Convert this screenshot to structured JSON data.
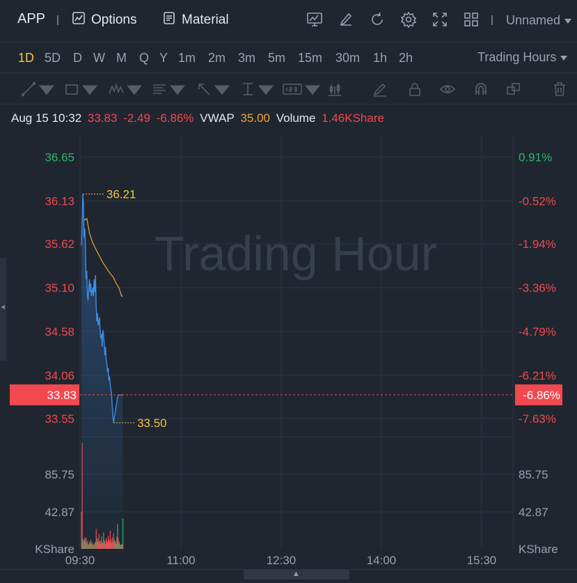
{
  "header": {
    "ticker": "APP",
    "separator": "|",
    "options_label": "Options",
    "material_label": "Material",
    "layout_name": "Unnamed",
    "icons": [
      "chart-compare-icon",
      "edit-icon",
      "refresh-icon",
      "gear-icon",
      "fullscreen-icon",
      "grid-layout-icon"
    ]
  },
  "intervals": {
    "items": [
      "1D",
      "5D",
      "D",
      "W",
      "M",
      "Q",
      "Y",
      "1m",
      "2m",
      "3m",
      "5m",
      "15m",
      "30m",
      "1h",
      "2h"
    ],
    "active": "1D",
    "session_label": "Trading Hours"
  },
  "drawing_tools": [
    "trendline-icon",
    "rectangle-icon",
    "pattern-icon",
    "fib-icon",
    "arrow-icon",
    "measure-icon",
    "text-note-icon",
    "candle-icon",
    "pencil-icon",
    "lock-icon",
    "eye-icon",
    "magnet-icon",
    "layers-icon",
    "trash-icon"
  ],
  "quote": {
    "datetime": "Aug 15 10:32",
    "price": "33.83",
    "change": "-2.49",
    "change_pct": "-6.86%",
    "vwap_label": "VWAP",
    "vwap_value": "35.00",
    "volume_label": "Volume",
    "volume_value": "1.46KShare"
  },
  "chart": {
    "watermark": "Trading Hour",
    "price_ticks": [
      "36.65",
      "36.13",
      "35.62",
      "35.10",
      "34.58",
      "34.06",
      "33.55"
    ],
    "pct_ticks": [
      "0.91%",
      "-0.52%",
      "-1.94%",
      "-3.36%",
      "-4.79%",
      "-6.21%",
      "-7.63%"
    ],
    "last_price_label": "33.83",
    "last_pct_label": "-6.86%",
    "high_label": "36.21",
    "low_label": "33.50",
    "volume_ticks": [
      "85.75",
      "42.87"
    ],
    "volume_unit": "KShare",
    "time_ticks": [
      "09:30",
      "11:00",
      "12:30",
      "14:00",
      "15:30"
    ],
    "colors": {
      "up": "#2db56b",
      "down": "#f2484f",
      "price_line": "#3c8de6",
      "vwap_line": "#f0a33b",
      "hl_label": "#f5c344",
      "last_badge": "#f2484f"
    }
  },
  "chart_data": {
    "type": "line",
    "x_unit": "minutes from 09:30",
    "series": [
      {
        "name": "",
        "x": [
          0,
          1,
          2,
          3,
          4,
          5,
          6,
          7,
          8,
          9,
          10,
          11,
          12,
          13,
          14,
          15,
          16,
          17,
          18,
          19,
          20,
          21,
          22,
          23,
          24,
          25,
          26,
          27,
          28,
          29,
          30,
          31,
          32,
          33,
          34,
          35,
          36,
          37,
          38,
          39,
          40,
          41,
          42,
          43,
          44,
          45,
          46,
          47,
          48,
          49,
          50,
          51,
          52,
          53,
          54,
          55,
          56,
          57,
          58,
          59,
          60,
          61,
          62
        ],
        "values": [
          35.6,
          35.9,
          36.21,
          36.1,
          35.7,
          35.8,
          35.6,
          35.2,
          35.3,
          35.0,
          34.95,
          35.1,
          35.2,
          35.05,
          35.15,
          35.0,
          35.05,
          35.1,
          35.0,
          35.2,
          35.05,
          35.25,
          34.9,
          34.7,
          34.8,
          34.65,
          34.7,
          34.75,
          34.6,
          34.5,
          34.55,
          34.4,
          34.6,
          34.55,
          34.45,
          34.3,
          34.4,
          34.25,
          34.2,
          34.1,
          34.15,
          34.0,
          34.05,
          33.95,
          33.9,
          33.85,
          33.7,
          33.6,
          33.5,
          33.55,
          33.6,
          33.65,
          33.7,
          33.75,
          33.8,
          33.83,
          33.83,
          33.83,
          33.83,
          33.83,
          33.83,
          33.83,
          33.83
        ]
      },
      {
        "name": "VWAP",
        "x": [
          4,
          8,
          12,
          16,
          20,
          24,
          28,
          32,
          36,
          40,
          44,
          48,
          52,
          56,
          60,
          62
        ],
        "values": [
          35.9,
          35.92,
          35.75,
          35.65,
          35.58,
          35.52,
          35.46,
          35.4,
          35.35,
          35.3,
          35.26,
          35.22,
          35.15,
          35.1,
          35.0,
          35.0
        ]
      }
    ],
    "ylim": [
      33.35,
      36.9
    ],
    "high": 36.21,
    "low": 33.5,
    "last": 33.83,
    "volume": {
      "unit": "KShare",
      "ylim": [
        0,
        128
      ],
      "bars": [
        {
          "v": 45,
          "up": false
        },
        {
          "v": 128,
          "up": false
        },
        {
          "v": 12,
          "up": true
        },
        {
          "v": 8,
          "up": false
        },
        {
          "v": 11,
          "up": false
        },
        {
          "v": 14,
          "up": true
        },
        {
          "v": 9,
          "up": false
        },
        {
          "v": 13,
          "up": false
        },
        {
          "v": 7,
          "up": true
        },
        {
          "v": 10,
          "up": false
        },
        {
          "v": 6,
          "up": false
        },
        {
          "v": 5,
          "up": true
        },
        {
          "v": 9,
          "up": false
        },
        {
          "v": 7,
          "up": false
        },
        {
          "v": 11,
          "up": true
        },
        {
          "v": 6,
          "up": false
        },
        {
          "v": 8,
          "up": false
        },
        {
          "v": 4,
          "up": true
        },
        {
          "v": 6,
          "up": false
        },
        {
          "v": 5,
          "up": false
        },
        {
          "v": 7,
          "up": true
        },
        {
          "v": 9,
          "up": false
        },
        {
          "v": 24,
          "up": false
        },
        {
          "v": 13,
          "up": true
        },
        {
          "v": 8,
          "up": false
        },
        {
          "v": 12,
          "up": false
        },
        {
          "v": 18,
          "up": false
        },
        {
          "v": 9,
          "up": true
        },
        {
          "v": 6,
          "up": false
        },
        {
          "v": 10,
          "up": false
        },
        {
          "v": 15,
          "up": true
        },
        {
          "v": 7,
          "up": false
        },
        {
          "v": 8,
          "up": false
        },
        {
          "v": 20,
          "up": false
        },
        {
          "v": 11,
          "up": true
        },
        {
          "v": 9,
          "up": false
        },
        {
          "v": 6,
          "up": true
        },
        {
          "v": 13,
          "up": false
        },
        {
          "v": 10,
          "up": false
        },
        {
          "v": 8,
          "up": true
        },
        {
          "v": 16,
          "up": false
        },
        {
          "v": 12,
          "up": false
        },
        {
          "v": 9,
          "up": true
        },
        {
          "v": 22,
          "up": false
        },
        {
          "v": 11,
          "up": false
        },
        {
          "v": 7,
          "up": true
        },
        {
          "v": 14,
          "up": false
        },
        {
          "v": 9,
          "up": false
        },
        {
          "v": 19,
          "up": false
        },
        {
          "v": 12,
          "up": true
        },
        {
          "v": 8,
          "up": false
        },
        {
          "v": 10,
          "up": false
        },
        {
          "v": 6,
          "up": true
        },
        {
          "v": 15,
          "up": false
        },
        {
          "v": 30,
          "up": true
        },
        {
          "v": 13,
          "up": false
        },
        {
          "v": 9,
          "up": true
        },
        {
          "v": 7,
          "up": false
        },
        {
          "v": 5,
          "up": true
        },
        {
          "v": 4,
          "up": false
        },
        {
          "v": 6,
          "up": true
        },
        {
          "v": 5,
          "up": false
        },
        {
          "v": 37,
          "up": true
        }
      ]
    }
  }
}
